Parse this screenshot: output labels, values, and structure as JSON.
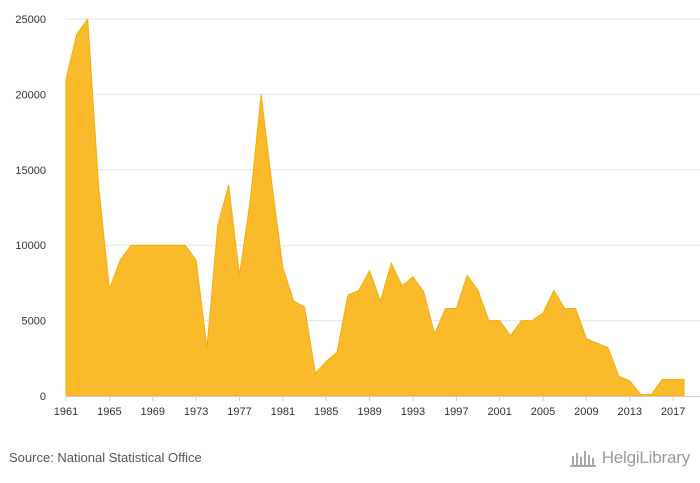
{
  "chart_data": {
    "type": "area",
    "title": "",
    "xlabel": "",
    "ylabel": "",
    "color": "#F9BA2C",
    "grid": "horizontal",
    "legend": "none",
    "xlim": [
      1961,
      2018
    ],
    "ylim": [
      0,
      25000
    ],
    "yticks": [
      "0",
      "5000",
      "10000",
      "15000",
      "20000",
      "25000"
    ],
    "yticks_values": [
      0,
      5000,
      10000,
      15000,
      20000,
      25000
    ],
    "xticks": [
      "1961",
      "1965",
      "1969",
      "1973",
      "1977",
      "1981",
      "1985",
      "1989",
      "1993",
      "1997",
      "2001",
      "2005",
      "2009",
      "2013",
      "2017"
    ],
    "xticks_values": [
      1961,
      1965,
      1969,
      1973,
      1977,
      1981,
      1985,
      1989,
      1993,
      1997,
      2001,
      2005,
      2009,
      2013,
      2017
    ],
    "x": [
      1961,
      1962,
      1963,
      1964,
      1965,
      1966,
      1967,
      1968,
      1969,
      1970,
      1971,
      1972,
      1973,
      1974,
      1975,
      1976,
      1977,
      1978,
      1979,
      1980,
      1981,
      1982,
      1983,
      1984,
      1985,
      1986,
      1987,
      1988,
      1989,
      1990,
      1991,
      1992,
      1993,
      1994,
      1995,
      1996,
      1997,
      1998,
      1999,
      2000,
      2001,
      2002,
      2003,
      2004,
      2005,
      2006,
      2007,
      2008,
      2009,
      2010,
      2011,
      2012,
      2013,
      2014,
      2015,
      2016,
      2017,
      2018
    ],
    "values": [
      21000,
      24000,
      25000,
      14000,
      7100,
      9000,
      10000,
      10000,
      10000,
      10000,
      10000,
      10000,
      9000,
      3200,
      11300,
      14000,
      8000,
      13000,
      20000,
      14000,
      8500,
      6300,
      5900,
      1500,
      2300,
      2900,
      6700,
      7000,
      8300,
      6300,
      8800,
      7300,
      7900,
      6900,
      4100,
      5800,
      5800,
      8000,
      7000,
      5000,
      5000,
      4000,
      5000,
      5000,
      5500,
      7000,
      5800,
      5800,
      3800,
      3500,
      3200,
      1300,
      1000,
      100,
      100,
      1100,
      1100,
      1100
    ]
  },
  "footer": {
    "source_label": "Source: National Statistical Office",
    "brand_name": "HelgiLibrary"
  }
}
